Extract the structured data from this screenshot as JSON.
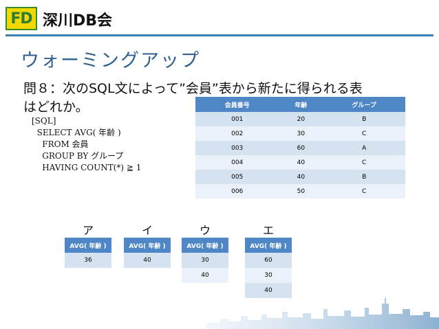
{
  "header": {
    "logo_text": "FD",
    "org_name": "深川DB会"
  },
  "slide": {
    "title": "ウォーミングアップ",
    "question_line1": "問８：次のSQL文によって”会員”表から新たに得られる表",
    "question_line2": "はどれか。"
  },
  "sql": {
    "lines": [
      "[SQL]",
      "  SELECT AVG( 年齢 )",
      "    FROM 会員",
      "    GROUP BY グループ",
      "    HAVING COUNT(*) ≧ 1"
    ]
  },
  "main_table": {
    "headers": [
      "会員番号",
      "年齢",
      "グループ"
    ],
    "rows": [
      [
        "001",
        "20",
        "B"
      ],
      [
        "002",
        "30",
        "C"
      ],
      [
        "003",
        "60",
        "A"
      ],
      [
        "004",
        "40",
        "C"
      ],
      [
        "005",
        "40",
        "B"
      ],
      [
        "006",
        "50",
        "C"
      ]
    ]
  },
  "options": [
    {
      "label": "ア",
      "header": "AVG( 年齢 )",
      "values": [
        "36"
      ]
    },
    {
      "label": "イ",
      "header": "AVG( 年齢 )",
      "values": [
        "40"
      ]
    },
    {
      "label": "ウ",
      "header": "AVG( 年齢 )",
      "values": [
        "30",
        "40"
      ]
    },
    {
      "label": "エ",
      "header": "AVG( 年齢 )",
      "values": [
        "60",
        "30",
        "40"
      ]
    }
  ],
  "colors": {
    "accent": "#4f86c6",
    "title": "#2f5f8f",
    "logo_bg": "#f0d800"
  }
}
